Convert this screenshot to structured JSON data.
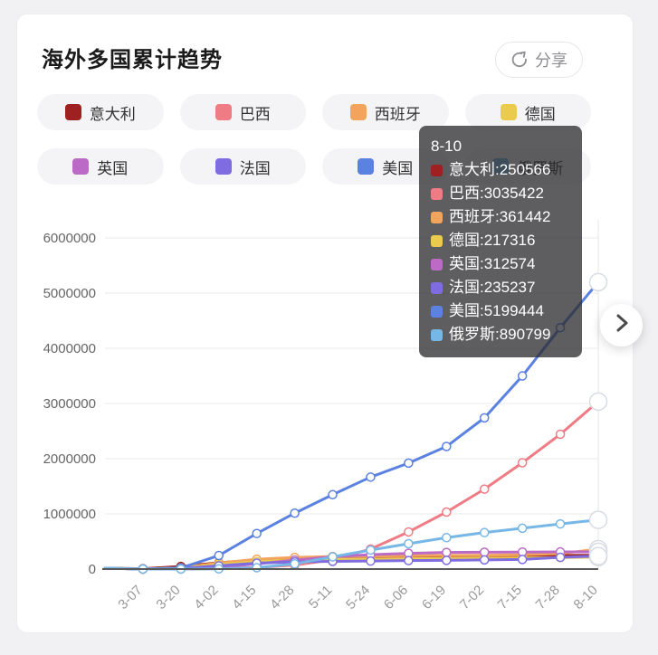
{
  "header": {
    "title": "海外多国累计趋势",
    "share_label": "分享"
  },
  "chart_data": {
    "type": "line",
    "title": "海外多国累计趋势",
    "x_labels": [
      "3-07",
      "3-20",
      "4-02",
      "4-15",
      "4-28",
      "5-11",
      "5-24",
      "6-06",
      "6-19",
      "7-02",
      "7-15",
      "7-28",
      "8-10"
    ],
    "ylim": [
      0,
      6000000
    ],
    "y_ticks": [
      0,
      1000000,
      2000000,
      3000000,
      4000000,
      5000000,
      6000000
    ],
    "grid": true,
    "legend_position": "top",
    "series": [
      {
        "id": "italy",
        "name": "意大利",
        "color": "#9E2020",
        "values": [
          5883,
          47021,
          115242,
          165155,
          201505,
          219814,
          229858,
          234531,
          238159,
          240961,
          243506,
          246286,
          250566
        ]
      },
      {
        "id": "brazil",
        "name": "巴西",
        "color": "#EF7C85",
        "values": [
          20,
          970,
          8044,
          28320,
          71886,
          168331,
          363211,
          672846,
          1032913,
          1448753,
          1926824,
          2442375,
          3035422
        ]
      },
      {
        "id": "spain",
        "name": "西班牙",
        "color": "#F2A45C",
        "values": [
          430,
          20410,
          110238,
          177633,
          210773,
          227436,
          235290,
          241310,
          245268,
          250103,
          257494,
          280610,
          361442
        ]
      },
      {
        "id": "germany",
        "name": "德国",
        "color": "#EBCB4E",
        "values": [
          800,
          19848,
          79696,
          134753,
          159119,
          172576,
          180458,
          184923,
          190359,
          196554,
          201574,
          207707,
          217316
        ]
      },
      {
        "id": "uk",
        "name": "英国",
        "color": "#BB6BC5",
        "values": [
          206,
          3983,
          33718,
          93873,
          161145,
          223060,
          259559,
          284868,
          301815,
          305420,
          308134,
          310825,
          312574
        ]
      },
      {
        "id": "france",
        "name": "法国",
        "color": "#7E6CE0",
        "values": [
          949,
          12612,
          59105,
          106206,
          128442,
          139063,
          144556,
          153634,
          158174,
          165719,
          173304,
          212211,
          235237
        ]
      },
      {
        "id": "usa",
        "name": "美国",
        "color": "#5B82E0",
        "values": [
          435,
          19624,
          245373,
          644188,
          1012582,
          1347881,
          1666828,
          1920061,
          2220961,
          2739879,
          3499398,
          4373561,
          5199444
        ]
      },
      {
        "id": "russia",
        "name": "俄罗斯",
        "color": "#77B7E5",
        "values": [
          84,
          253,
          3548,
          24490,
          93558,
          221344,
          344481,
          458689,
          569063,
          661165,
          739947,
          818120,
          890799
        ]
      }
    ]
  },
  "tooltip": {
    "title": "8-10"
  },
  "colors": {
    "page_bg": "#F1F1F3",
    "card_bg": "#FFFFFF",
    "grid_line": "#E9E9EB",
    "axis_line": "#5A5A5A",
    "y_label": "#666666",
    "x_label": "#999999"
  }
}
